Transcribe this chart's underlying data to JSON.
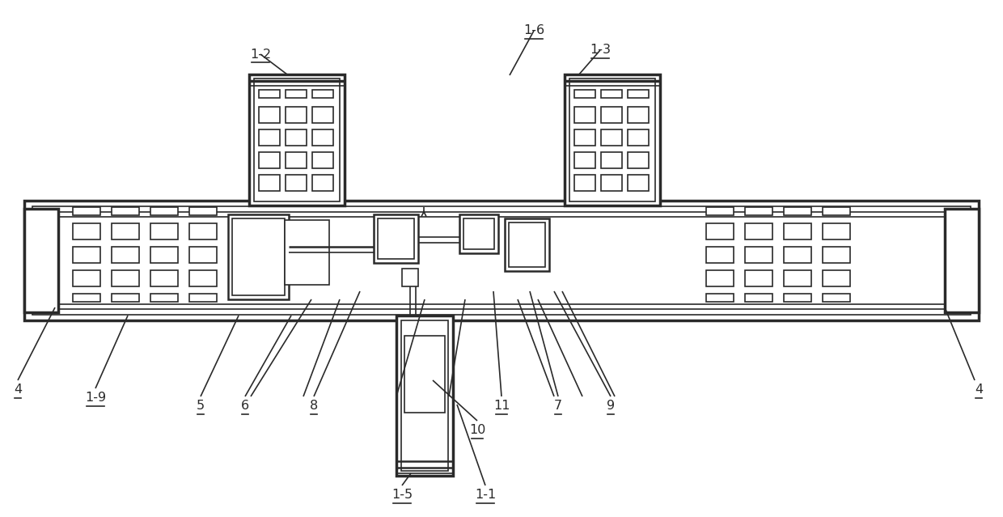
{
  "bg_color": "#ffffff",
  "line_color": "#2a2a2a",
  "fig_width": 12.4,
  "fig_height": 6.39,
  "dpi": 100
}
